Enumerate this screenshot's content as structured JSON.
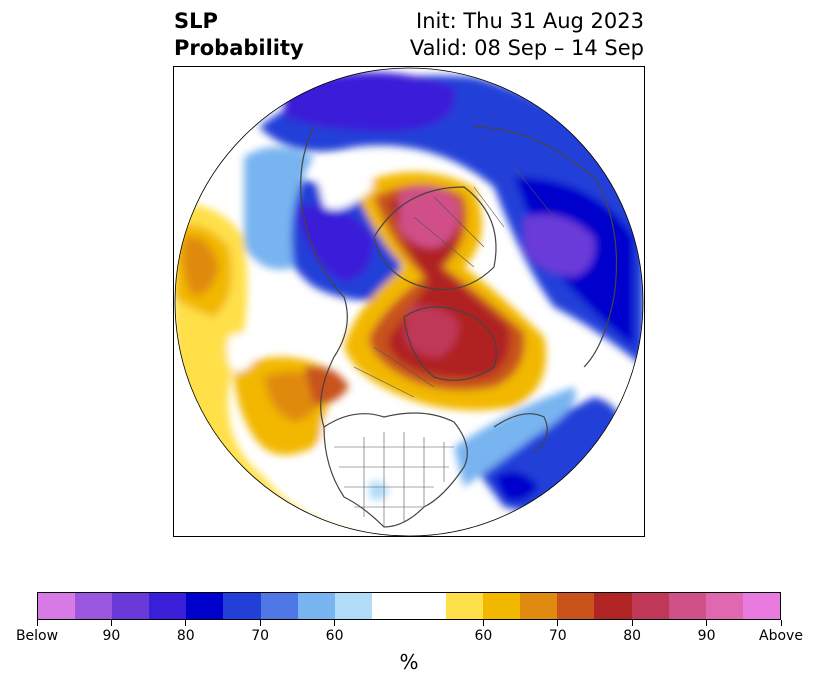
{
  "title": {
    "left_line1": "SLP",
    "left_line2": "Probability",
    "right_line1": "Init: Thu 31 Aug 2023",
    "right_line2": "Valid: 08 Sep – 14 Sep"
  },
  "map": {
    "projection": "north-polar-stereographic",
    "variable": "sea level pressure probability",
    "features": [
      {
        "region": "Central Siberia / Asian Arctic",
        "category": "Above",
        "max_level": 90
      },
      {
        "region": "Greenland / Canadian Arctic",
        "category": "Above",
        "max_level": 80
      },
      {
        "region": "Gulf of Alaska / NE Pacific",
        "category": "Above",
        "max_level": 70
      },
      {
        "region": "Western Russia / Europe",
        "category": "Below",
        "max_level": 90
      },
      {
        "region": "Northeast Asia / Bering",
        "category": "Below",
        "max_level": 80
      },
      {
        "region": "North Atlantic",
        "category": "Below",
        "max_level": 80
      },
      {
        "region": "Northern Pacific",
        "category": "Above",
        "max_level": 70
      }
    ]
  },
  "colorbar": {
    "colors": [
      "#d87ae6",
      "#9b56e0",
      "#6a3ad8",
      "#3a1fd8",
      "#0000cc",
      "#2240d8",
      "#4f78e6",
      "#78b4f0",
      "#b0dcf8",
      "#ffffff",
      "#ffffff",
      "#ffe04a",
      "#f2b800",
      "#e08a10",
      "#c8521a",
      "#b02424",
      "#c03858",
      "#d05088",
      "#e068b0",
      "#e87ae0"
    ],
    "tick_labels": [
      "Below",
      "90",
      "80",
      "70",
      "60",
      "60",
      "70",
      "80",
      "90",
      "Above"
    ],
    "unit_label": "%"
  }
}
